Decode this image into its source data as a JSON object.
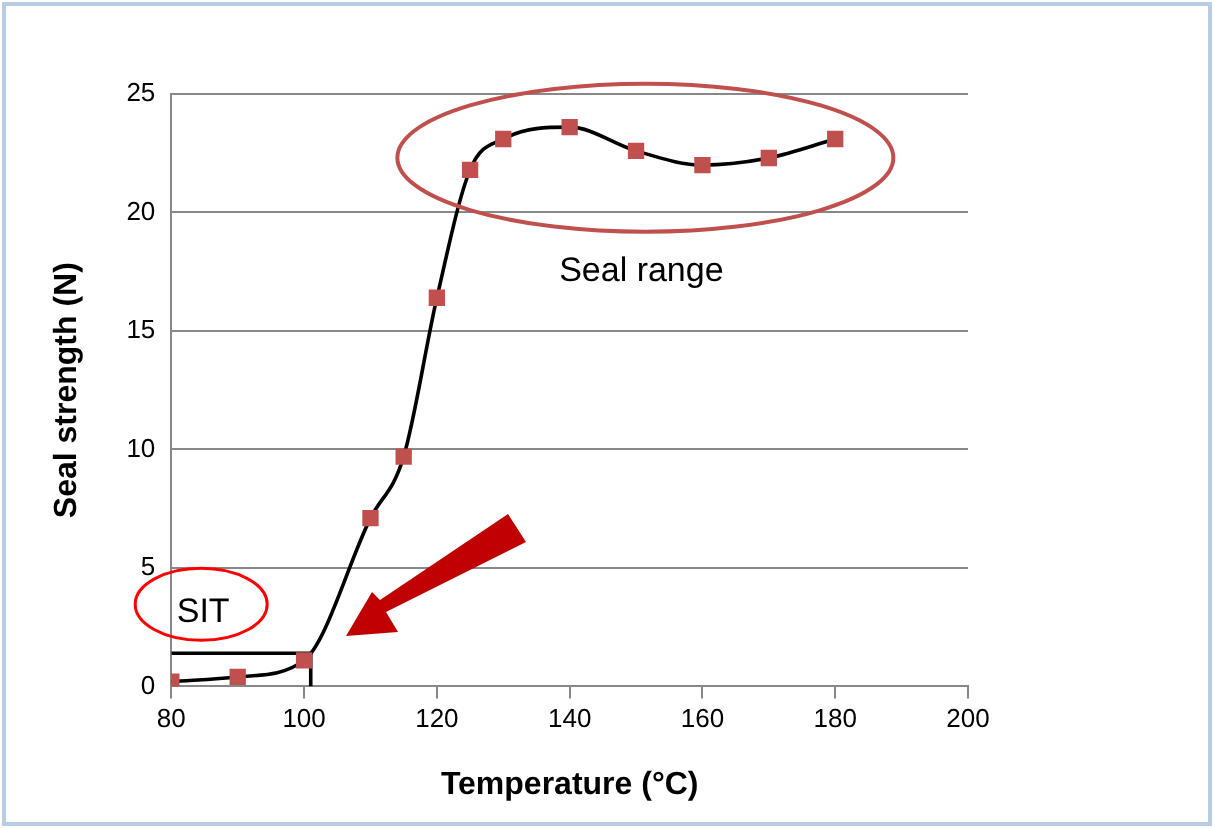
{
  "chart_data": {
    "type": "line",
    "xlabel": "Temperature (°C)",
    "ylabel": "Seal strength (N)",
    "xlim": [
      80,
      200
    ],
    "xticks": [
      80,
      100,
      120,
      140,
      160,
      180,
      200
    ],
    "ylim": [
      0,
      25
    ],
    "yticks": [
      0,
      5,
      10,
      15,
      20,
      25
    ],
    "grid": "y",
    "legend": false,
    "series": [
      {
        "x": [
          80,
          90,
          100,
          110,
          115,
          120,
          125,
          130,
          140,
          150,
          160,
          170,
          180
        ],
        "values": [
          0.2,
          0.4,
          1.1,
          7.1,
          9.7,
          16.4,
          21.8,
          23.1,
          23.6,
          22.6,
          22.0,
          22.3,
          23.1
        ],
        "color": "#000000",
        "colors": [
          "#c0504d",
          "#c0504d",
          "#c0504d",
          "#c0504d",
          "#c0504d",
          "#c0504d",
          "#c0504d",
          "#c0504d",
          "#c0504d",
          "#c0504d",
          "#c0504d",
          "#c0504d",
          "#c0504d"
        ],
        "marker": "square"
      },
      {
        "x": [
          80,
          101,
          101
        ],
        "values": [
          1.4,
          1.4,
          0
        ],
        "color": "#000000",
        "marker": "none"
      }
    ],
    "annotations": [
      "Seal range",
      "SIT"
    ]
  }
}
